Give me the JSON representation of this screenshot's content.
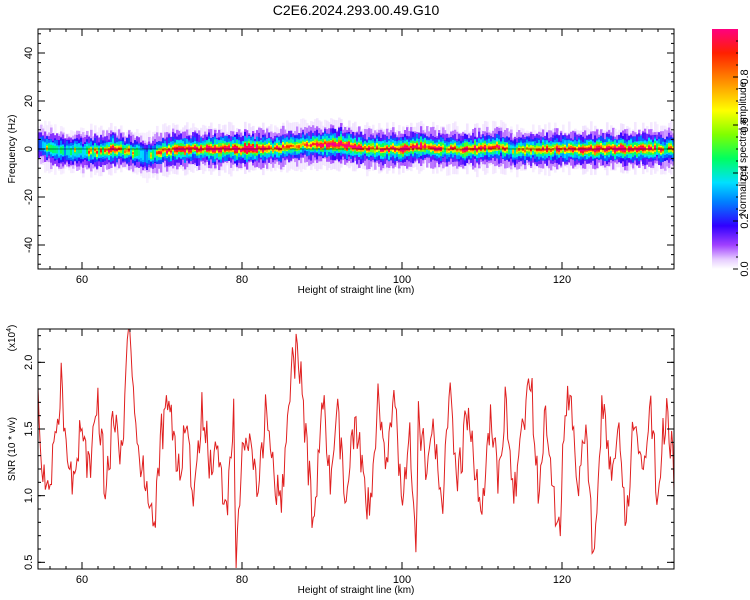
{
  "title": "C2E6.2024.293.00.49.G10",
  "chart_data": [
    {
      "type": "heatmap",
      "xlabel": "Height of straight line (km)",
      "ylabel": "Frequency (Hz)",
      "xlim": [
        54.5,
        134
      ],
      "ylim": [
        -50,
        50
      ],
      "xticks": [
        60,
        80,
        100,
        120
      ],
      "yticks": [
        -40,
        -20,
        0,
        20,
        40
      ],
      "colorbar": {
        "label": "Normalized spectral amplitude",
        "range": [
          0,
          1
        ],
        "ticks": [
          "0.0",
          "0.2",
          "0.4",
          "0.6",
          "0.8"
        ],
        "tick_values": [
          0.0,
          0.2,
          0.4,
          0.6,
          0.8
        ],
        "colormap": "rainbow"
      },
      "ridge": {
        "x": [
          54.5,
          56,
          58,
          60,
          62,
          64,
          66,
          68,
          70,
          72,
          74,
          76,
          78,
          80,
          82,
          84,
          86,
          88,
          90,
          92,
          94,
          96,
          98,
          100,
          102,
          104,
          106,
          108,
          110,
          112,
          114,
          116,
          118,
          120,
          122,
          124,
          126,
          128,
          130,
          132,
          134
        ],
        "freq": [
          2,
          0,
          -1,
          -1,
          -1,
          0,
          -1,
          -3,
          -1,
          0,
          0,
          0,
          0,
          0,
          0,
          0,
          1,
          2,
          2,
          2,
          1,
          0,
          0,
          0,
          1,
          0,
          0,
          0,
          0,
          1,
          -1,
          0,
          0,
          0,
          0,
          0,
          0,
          0,
          0,
          0,
          0
        ],
        "amplitude": [
          0.6,
          0.7,
          0.6,
          0.7,
          0.8,
          0.9,
          0.7,
          0.6,
          0.8,
          0.9,
          0.9,
          0.9,
          0.95,
          1.0,
          0.95,
          0.85,
          0.8,
          0.85,
          0.95,
          1.0,
          0.9,
          0.8,
          0.85,
          0.9,
          0.95,
          0.85,
          0.8,
          0.9,
          0.85,
          0.8,
          0.7,
          0.8,
          0.85,
          0.9,
          0.85,
          0.9,
          0.95,
          0.9,
          0.85,
          0.8,
          0.7
        ]
      }
    },
    {
      "type": "line",
      "xlabel": "Height of straight line (km)",
      "ylabel": "SNR (10 * v/v)",
      "yscale_label": "(x10",
      "yscale_exp": "4",
      "yscale_close": ")",
      "xlim": [
        54.5,
        134
      ],
      "ylim": [
        0.45,
        2.25
      ],
      "xticks": [
        60,
        80,
        100,
        120
      ],
      "yticks": [
        0.5,
        1.0,
        1.5,
        2.0
      ],
      "ytick_labels": [
        "0.5",
        "1.0",
        "1.5",
        "2.0"
      ],
      "color": "#e02020",
      "series": [
        {
          "x": [
            54.5,
            55,
            56,
            57,
            57.5,
            58,
            59,
            60,
            61,
            62,
            63,
            64,
            65,
            65.5,
            66,
            67,
            68,
            69,
            70,
            71,
            72,
            73,
            74,
            75,
            76,
            77,
            78,
            79,
            79.2,
            80,
            81,
            82,
            83,
            84,
            85,
            86,
            87,
            88,
            89,
            90,
            91,
            92,
            93,
            94,
            95,
            96,
            97,
            98,
            99,
            100,
            101,
            101.8,
            102,
            103,
            104,
            105,
            106,
            107,
            108,
            109,
            110,
            111,
            112,
            113,
            114,
            115,
            116,
            117,
            118,
            119,
            119.8,
            120,
            121,
            122,
            123,
            124,
            125,
            126,
            127,
            128,
            129,
            130,
            131,
            132,
            133,
            134
          ],
          "y": [
            1.7,
            1.2,
            1.05,
            1.6,
            1.95,
            1.3,
            1.1,
            1.5,
            1.15,
            1.7,
            1.0,
            1.65,
            1.2,
            2.1,
            2.22,
            1.3,
            1.05,
            0.78,
            1.5,
            1.7,
            1.1,
            1.55,
            0.95,
            1.7,
            1.2,
            1.4,
            0.85,
            1.6,
            0.58,
            1.2,
            1.55,
            1.0,
            1.7,
            1.15,
            0.95,
            1.85,
            2.18,
            1.4,
            0.72,
            1.75,
            1.1,
            1.6,
            0.9,
            1.5,
            1.25,
            0.85,
            1.65,
            1.2,
            1.75,
            1.0,
            1.4,
            0.45,
            1.6,
            1.2,
            1.5,
            0.9,
            1.75,
            1.05,
            1.6,
            1.25,
            0.8,
            1.55,
            1.15,
            1.7,
            1.0,
            1.45,
            1.9,
            1.1,
            1.65,
            0.9,
            0.58,
            1.4,
            1.75,
            1.05,
            1.55,
            0.45,
            1.7,
            1.2,
            1.5,
            0.85,
            1.6,
            1.1,
            1.75,
            0.95,
            1.65,
            1.2
          ]
        }
      ]
    }
  ]
}
